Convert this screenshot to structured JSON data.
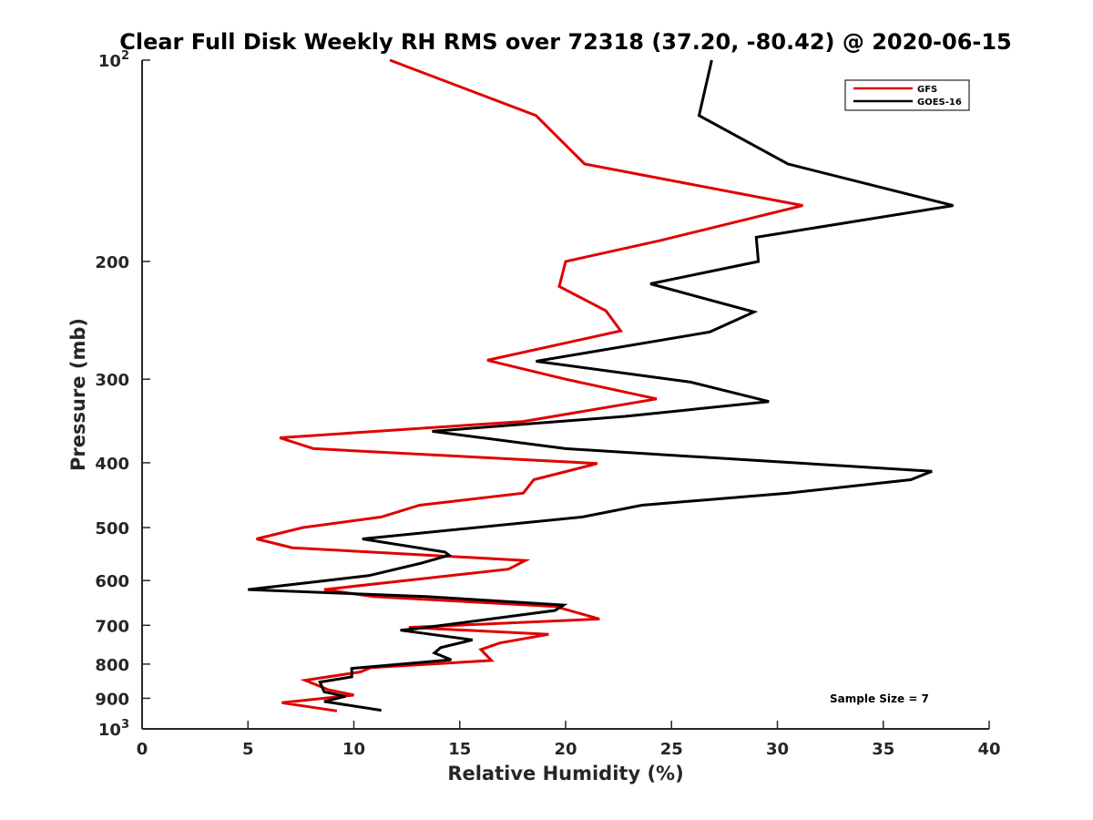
{
  "chart_data": {
    "type": "line",
    "title": "Clear Full Disk Weekly RH RMS over 72318 (37.20, -80.42) @ 2020-06-15",
    "xlabel": "Relative Humidity (%)",
    "ylabel": "Pressure (mb)",
    "xlim": [
      0,
      40
    ],
    "ylim": [
      100,
      1000
    ],
    "y_scale": "log",
    "y_reversed": true,
    "x_ticks": [
      "0",
      "5",
      "10",
      "15",
      "20",
      "25",
      "30",
      "35",
      "40"
    ],
    "y_ticks": [
      {
        "value": 100,
        "base": "10",
        "exp": "2"
      },
      {
        "value": 200,
        "label": "200"
      },
      {
        "value": 300,
        "label": "300"
      },
      {
        "value": 400,
        "label": "400"
      },
      {
        "value": 500,
        "label": "500"
      },
      {
        "value": 600,
        "label": "600"
      },
      {
        "value": 700,
        "label": "700"
      },
      {
        "value": 800,
        "label": "800"
      },
      {
        "value": 900,
        "label": "900"
      },
      {
        "value": 1000,
        "base": "10",
        "exp": "3"
      }
    ],
    "grid": false,
    "legend_position": "top-right",
    "annotation": "Sample Size = 7",
    "series": [
      {
        "name": "GFS",
        "color": "#e00000",
        "points": [
          [
            11.7,
            100
          ],
          [
            18.6,
            121
          ],
          [
            20.9,
            143
          ],
          [
            31.2,
            165
          ],
          [
            24.5,
            186
          ],
          [
            20.0,
            200
          ],
          [
            19.7,
            218
          ],
          [
            21.9,
            237
          ],
          [
            22.6,
            254
          ],
          [
            16.3,
            281
          ],
          [
            20.0,
            300
          ],
          [
            24.3,
            321
          ],
          [
            18.0,
            347
          ],
          [
            6.5,
            367
          ],
          [
            8.1,
            381
          ],
          [
            21.5,
            401
          ],
          [
            18.5,
            424
          ],
          [
            18.0,
            444
          ],
          [
            13.1,
            463
          ],
          [
            11.3,
            482
          ],
          [
            7.6,
            500
          ],
          [
            5.4,
            520
          ],
          [
            7.1,
            536
          ],
          [
            18.1,
            560
          ],
          [
            17.3,
            577
          ],
          [
            8.6,
            619
          ],
          [
            10.9,
            634
          ],
          [
            19.5,
            656
          ],
          [
            21.6,
            685
          ],
          [
            12.6,
            705
          ],
          [
            19.2,
            722
          ],
          [
            16.9,
            744
          ],
          [
            16.0,
            761
          ],
          [
            16.5,
            790
          ],
          [
            10.8,
            810
          ],
          [
            10.3,
            822
          ],
          [
            7.7,
            846
          ],
          [
            8.8,
            874
          ],
          [
            10.0,
            890
          ],
          [
            6.6,
            914
          ],
          [
            9.2,
            940
          ]
        ]
      },
      {
        "name": "GOES-16",
        "color": "#000000",
        "points": [
          [
            26.9,
            100
          ],
          [
            26.3,
            121
          ],
          [
            30.5,
            143
          ],
          [
            38.3,
            165
          ],
          [
            29.0,
            184
          ],
          [
            29.1,
            200
          ],
          [
            24.0,
            216
          ],
          [
            28.9,
            238
          ],
          [
            26.8,
            255
          ],
          [
            18.6,
            282
          ],
          [
            25.9,
            303
          ],
          [
            29.6,
            324
          ],
          [
            22.8,
            341
          ],
          [
            13.7,
            359
          ],
          [
            20.0,
            381
          ],
          [
            37.3,
            412
          ],
          [
            36.3,
            424
          ],
          [
            30.5,
            444
          ],
          [
            23.6,
            463
          ],
          [
            20.8,
            482
          ],
          [
            10.4,
            520
          ],
          [
            14.3,
            544
          ],
          [
            14.5,
            550
          ],
          [
            13.2,
            565
          ],
          [
            10.7,
            590
          ],
          [
            5.0,
            619
          ],
          [
            13.4,
            634
          ],
          [
            19.9,
            653
          ],
          [
            19.5,
            665
          ],
          [
            13.0,
            708
          ],
          [
            12.2,
            712
          ],
          [
            15.6,
            736
          ],
          [
            14.1,
            756
          ],
          [
            13.8,
            770
          ],
          [
            14.6,
            788
          ],
          [
            9.9,
            812
          ],
          [
            9.9,
            836
          ],
          [
            8.4,
            851
          ],
          [
            8.6,
            880
          ],
          [
            9.6,
            894
          ],
          [
            8.6,
            910
          ],
          [
            11.3,
            938
          ]
        ]
      }
    ]
  }
}
